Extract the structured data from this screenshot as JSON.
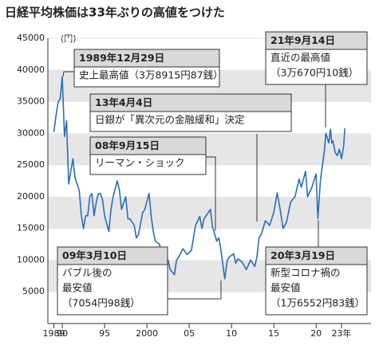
{
  "chart_data": {
    "type": "line",
    "title": "日経平均株価は33年ぶりの高値をつけた",
    "y_unit": "(円)",
    "xlim": [
      1989,
      2023.4
    ],
    "xticks": [
      1989,
      {
        "value": 1990,
        "label": "90"
      },
      {
        "value": 1995,
        "label": "95"
      },
      2000,
      {
        "value": 2005,
        "label": "05"
      },
      {
        "value": 2010,
        "label": "10"
      },
      {
        "value": 2015,
        "label": "15"
      },
      {
        "value": 2020,
        "label": "20"
      },
      {
        "value": 2023,
        "label": "23年"
      }
    ],
    "ylim": [
      0,
      45000
    ],
    "yticks": [
      5000,
      10000,
      15000,
      20000,
      25000,
      30000,
      35000,
      40000,
      45000
    ],
    "grid": true,
    "x": [
      1989.0,
      1989.25,
      1989.5,
      1989.75,
      1989.99,
      1990.25,
      1990.5,
      1990.75,
      1991.0,
      1991.25,
      1991.5,
      1991.75,
      1992.0,
      1992.25,
      1992.5,
      1992.75,
      1993.0,
      1993.25,
      1993.5,
      1993.75,
      1994.0,
      1994.25,
      1994.5,
      1994.75,
      1995.0,
      1995.5,
      1995.75,
      1996.0,
      1996.5,
      1996.75,
      1997.0,
      1997.5,
      1997.75,
      1998.0,
      1998.5,
      1998.75,
      1999.0,
      1999.5,
      1999.75,
      2000.25,
      2000.5,
      2000.75,
      2001.0,
      2001.5,
      2001.75,
      2002.0,
      2002.5,
      2002.75,
      2003.25,
      2003.5,
      2003.75,
      2004.25,
      2004.75,
      2005.25,
      2005.75,
      2006.25,
      2006.5,
      2006.75,
      2007.25,
      2007.5,
      2007.75,
      2008.25,
      2008.5,
      2008.7,
      2009.2,
      2009.5,
      2009.75,
      2010.25,
      2010.5,
      2010.75,
      2011.25,
      2011.75,
      2012.25,
      2012.75,
      2013.0,
      2013.25,
      2013.5,
      2013.99,
      2014.5,
      2014.99,
      2015.4,
      2015.75,
      2016.1,
      2016.5,
      2016.99,
      2017.5,
      2017.99,
      2018.25,
      2018.75,
      2018.99,
      2019.5,
      2019.99,
      2020.21,
      2020.5,
      2020.99,
      2021.15,
      2021.5,
      2021.7,
      2021.85,
      2021.99,
      2022.25,
      2022.5,
      2022.75,
      2023.0,
      2023.25,
      2023.4
    ],
    "series": [
      {
        "name": "日経平均株価",
        "color": "#2b6cb8",
        "values": [
          30200,
          32800,
          34900,
          35500,
          38915,
          29500,
          32000,
          22000,
          24000,
          26000,
          23000,
          22000,
          21000,
          17000,
          15000,
          17000,
          17000,
          20000,
          20500,
          17000,
          19000,
          20500,
          20500,
          19500,
          17000,
          14500,
          18000,
          20000,
          22500,
          21000,
          18000,
          20000,
          16500,
          16500,
          15500,
          13500,
          14000,
          17500,
          18000,
          20500,
          17000,
          14500,
          13000,
          12500,
          10000,
          10500,
          10000,
          8500,
          7700,
          10000,
          10500,
          11800,
          10900,
          11500,
          15500,
          16900,
          15000,
          16500,
          17500,
          18000,
          15300,
          13000,
          13500,
          12000,
          7054,
          10000,
          10500,
          11000,
          9500,
          10200,
          9700,
          8500,
          10000,
          9000,
          10500,
          13500,
          14000,
          16200,
          15500,
          17500,
          20600,
          18000,
          15000,
          16000,
          19200,
          20000,
          22800,
          21500,
          24000,
          20000,
          21500,
          23600,
          16552,
          22500,
          27400,
          30000,
          28500,
          30670,
          28500,
          28800,
          27000,
          26500,
          27500,
          26000,
          28000,
          30800
        ]
      }
    ],
    "annotations": [
      {
        "title": "1989年12月29日",
        "lines": [
          "史上最高値（3万8915円87銭）"
        ]
      },
      {
        "title": "13年4月4日",
        "lines": [
          "日銀が「異次元の金融緩和」決定"
        ]
      },
      {
        "title": "08年9月15日",
        "lines": [
          "リーマン・ショック"
        ]
      },
      {
        "title": "21年9月14日",
        "lines": [
          "直近の最高値",
          "（3万670円10銭）"
        ]
      },
      {
        "title": "09年3月10日",
        "lines": [
          "バブル後の",
          "最安値",
          "（7054円98銭）"
        ]
      },
      {
        "title": "20年3月19日",
        "lines": [
          "新型コロナ禍の",
          "最安値",
          "（1万6552円83銭）"
        ]
      }
    ]
  }
}
